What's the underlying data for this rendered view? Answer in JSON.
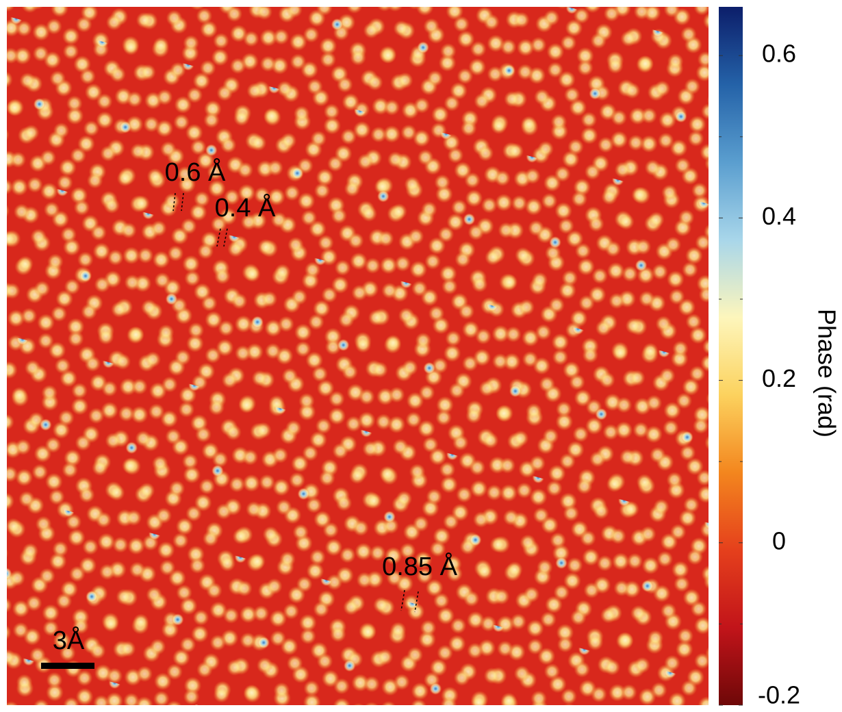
{
  "chart_data": {
    "type": "image",
    "annotations": [
      "0.6 Å",
      "0.4 Å",
      "0.85 Å"
    ],
    "scale_bar_label": "3Å",
    "colorbar": {
      "label": "Phase (rad)",
      "lim": [
        -0.2,
        0.66
      ],
      "ticks": [
        -0.2,
        0,
        0.2,
        0.4,
        0.6
      ],
      "minor_ticks": [
        -0.1,
        0.1,
        0.3,
        0.5
      ],
      "colormap": [
        "#6e0808",
        "#c2141a",
        "#e5401c",
        "#f3861e",
        "#fcd25e",
        "#fdf6bc",
        "#a8d6ea",
        "#5a9ecf",
        "#2462a8",
        "#0c1e6a"
      ]
    }
  }
}
